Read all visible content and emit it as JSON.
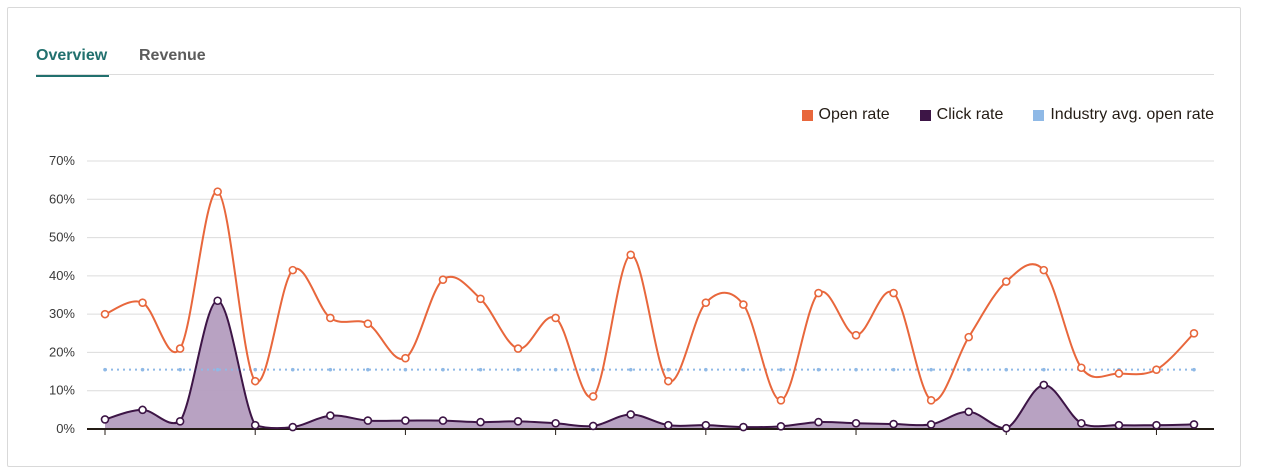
{
  "tabs": [
    {
      "label": "Overview",
      "active": true
    },
    {
      "label": "Revenue",
      "active": false
    }
  ],
  "legend": [
    {
      "label": "Open rate",
      "color": "#e8673c"
    },
    {
      "label": "Click rate",
      "color": "#3d1546"
    },
    {
      "label": "Industry avg. open rate",
      "color": "#8fb9e6"
    }
  ],
  "chart_data": {
    "type": "line",
    "title": "",
    "xlabel": "",
    "ylabel": "",
    "ylim": [
      0,
      70
    ],
    "yticks": [
      "0%",
      "10%",
      "20%",
      "30%",
      "40%",
      "50%",
      "60%",
      "70%"
    ],
    "grid": true,
    "legend_position": "top-right",
    "series": [
      {
        "name": "Open rate",
        "color": "#e8673c",
        "values": [
          30,
          33,
          21,
          62,
          12.5,
          41.5,
          29,
          27.5,
          18.5,
          39,
          34,
          21,
          29,
          8.5,
          45.5,
          12.5,
          33,
          32.5,
          7.5,
          35.5,
          24.5,
          35.5,
          7.5,
          24,
          38.5,
          41.5,
          16,
          14.5,
          15.5,
          25
        ]
      },
      {
        "name": "Click rate",
        "color": "#3d1546",
        "fill": "#b49dbf",
        "values": [
          2.5,
          5,
          2,
          33.5,
          1,
          0.5,
          3.5,
          2.2,
          2.2,
          2.2,
          1.8,
          2,
          1.5,
          0.8,
          3.8,
          1,
          1,
          0.5,
          0.7,
          1.8,
          1.5,
          1.3,
          1.2,
          4.5,
          0.2,
          11.5,
          1.5,
          1,
          1,
          1.2
        ]
      },
      {
        "name": "Industry avg. open rate",
        "color": "#8fb9e6",
        "values": [
          15.5,
          15.5,
          15.5,
          15.5,
          15.5,
          15.5,
          15.5,
          15.5,
          15.5,
          15.5,
          15.5,
          15.5,
          15.5,
          15.5,
          15.5,
          15.5,
          15.5,
          15.5,
          15.5,
          15.5,
          15.5,
          15.5,
          15.5,
          15.5,
          15.5,
          15.5,
          15.5,
          15.5,
          15.5,
          15.5
        ]
      }
    ]
  }
}
